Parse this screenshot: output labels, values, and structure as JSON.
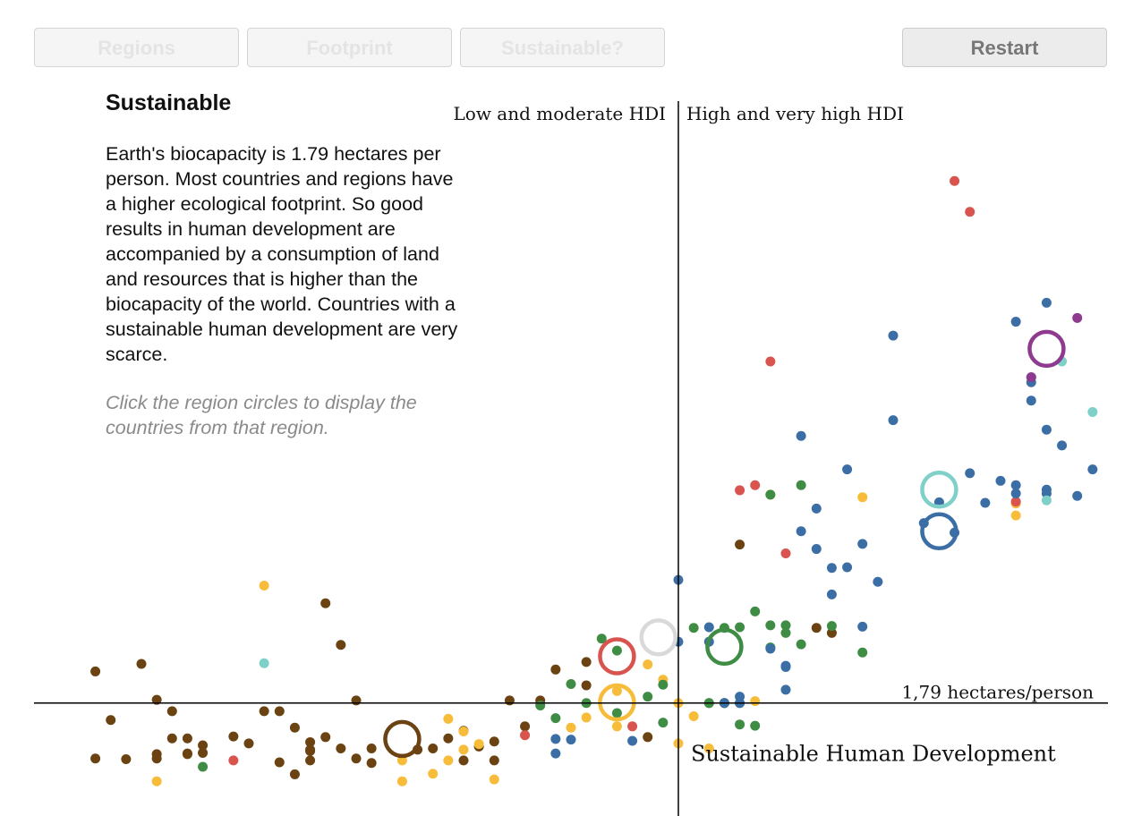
{
  "buttons": {
    "regions": "Regions",
    "footprint": "Footprint",
    "sustainable": "Sustainable?",
    "restart": "Restart"
  },
  "panel": {
    "title": "Sustainable",
    "body": "Earth's biocapacity is 1.79 hectares per person. Most countries and regions have a higher ecological footprint. So good results in human development are accompanied by a consumption of land and resources that is higher than the biocapacity of the world. Countries with a sustainable human development are very scarce.",
    "hint": "Click the region circles to display the countries from that region."
  },
  "colors": {
    "africa": "#6b4212",
    "asia_pacific": "#f7bc3a",
    "arab_states": "#d9534f",
    "latin_america": "#3f8c45",
    "europe_central_asia": "#3c6ea6",
    "oecd": "#7fd0c8",
    "middle_east_top": "#8e3a8e",
    "world": "#d9d9d9"
  },
  "chart_data": {
    "type": "scatter",
    "title": "",
    "xlabel": "",
    "ylabel": "",
    "xlim": [
      0.28,
      0.98
    ],
    "ylim": [
      0,
      10.8
    ],
    "hdi_divider": 0.7,
    "biocapacity_line": 1.79,
    "annotations": {
      "left_region": "Low and moderate HDI",
      "right_region": "High and very high HDI",
      "biocapacity_label": "1,79 hectares/person",
      "quadrant_label": "Sustainable Human Development"
    },
    "region_circles": [
      {
        "color": "africa",
        "x": 0.52,
        "y": 1.22
      },
      {
        "color": "arab_states",
        "x": 0.66,
        "y": 2.53
      },
      {
        "color": "asia_pacific",
        "x": 0.66,
        "y": 1.8
      },
      {
        "color": "world",
        "x": 0.687,
        "y": 2.83
      },
      {
        "color": "latin_america",
        "x": 0.73,
        "y": 2.68
      },
      {
        "color": "europe_central_asia",
        "x": 0.87,
        "y": 4.51
      },
      {
        "color": "oecd",
        "x": 0.87,
        "y": 5.17
      },
      {
        "color": "middle_east_top",
        "x": 0.94,
        "y": 7.4
      }
    ],
    "series": [
      {
        "name": "africa",
        "points": [
          [
            0.32,
            2.29
          ],
          [
            0.35,
            2.41
          ],
          [
            0.33,
            1.52
          ],
          [
            0.36,
            0.98
          ],
          [
            0.36,
            1.84
          ],
          [
            0.37,
            1.23
          ],
          [
            0.37,
            1.66
          ],
          [
            0.38,
            1.23
          ],
          [
            0.39,
            1.0
          ],
          [
            0.38,
            0.99
          ],
          [
            0.39,
            1.12
          ],
          [
            0.41,
            1.26
          ],
          [
            0.42,
            1.15
          ],
          [
            0.43,
            1.66
          ],
          [
            0.44,
            1.66
          ],
          [
            0.45,
            1.4
          ],
          [
            0.46,
            1.03
          ],
          [
            0.46,
            1.17
          ],
          [
            0.45,
            0.66
          ],
          [
            0.36,
            0.91
          ],
          [
            0.38,
            0.98
          ],
          [
            0.32,
            0.91
          ],
          [
            0.34,
            0.9
          ],
          [
            0.47,
            3.37
          ],
          [
            0.48,
            2.71
          ],
          [
            0.49,
            1.83
          ],
          [
            0.48,
            1.07
          ],
          [
            0.49,
            0.91
          ],
          [
            0.5,
            1.07
          ],
          [
            0.5,
            0.84
          ],
          [
            0.53,
            1.05
          ],
          [
            0.54,
            1.07
          ],
          [
            0.55,
            1.23
          ],
          [
            0.56,
            1.35
          ],
          [
            0.57,
            1.1
          ],
          [
            0.58,
            1.18
          ],
          [
            0.59,
            1.83
          ],
          [
            0.6,
            1.42
          ],
          [
            0.61,
            1.83
          ],
          [
            0.62,
            2.32
          ],
          [
            0.64,
            2.44
          ],
          [
            0.64,
            2.07
          ],
          [
            0.68,
            1.25
          ],
          [
            0.58,
            0.88
          ],
          [
            0.44,
            0.85
          ],
          [
            0.46,
            1.05
          ],
          [
            0.56,
            0.88
          ],
          [
            0.46,
            0.88
          ],
          [
            0.74,
            4.3
          ],
          [
            0.79,
            2.98
          ],
          [
            0.8,
            2.9
          ],
          [
            0.47,
            1.25
          ]
        ]
      },
      {
        "name": "asia_pacific",
        "points": [
          [
            0.43,
            3.65
          ],
          [
            0.52,
            0.88
          ],
          [
            0.54,
            0.67
          ],
          [
            0.55,
            1.54
          ],
          [
            0.56,
            1.05
          ],
          [
            0.56,
            1.34
          ],
          [
            0.57,
            1.14
          ],
          [
            0.58,
            0.58
          ],
          [
            0.64,
            1.56
          ],
          [
            0.66,
            1.42
          ],
          [
            0.7,
            1.15
          ],
          [
            0.7,
            1.79
          ],
          [
            0.72,
            1.07
          ],
          [
            0.75,
            1.82
          ],
          [
            0.71,
            1.58
          ],
          [
            0.68,
            2.4
          ],
          [
            0.66,
            1.98
          ],
          [
            0.76,
            5.09
          ],
          [
            0.82,
            5.05
          ],
          [
            0.92,
            4.76
          ],
          [
            0.92,
            4.95
          ],
          [
            0.55,
            0.88
          ],
          [
            0.36,
            0.55
          ],
          [
            0.52,
            0.55
          ],
          [
            0.69,
            2.16
          ],
          [
            0.63,
            1.4
          ]
        ]
      },
      {
        "name": "arab_states",
        "points": [
          [
            0.88,
            10.06
          ],
          [
            0.89,
            9.57
          ],
          [
            0.77,
            4.16
          ],
          [
            0.75,
            5.24
          ],
          [
            0.74,
            5.16
          ],
          [
            0.76,
            7.2
          ],
          [
            0.92,
            4.98
          ],
          [
            0.67,
            1.42
          ],
          [
            0.6,
            1.28
          ],
          [
            0.41,
            0.88
          ]
        ]
      },
      {
        "name": "latin_america",
        "points": [
          [
            0.61,
            1.75
          ],
          [
            0.62,
            1.55
          ],
          [
            0.63,
            2.09
          ],
          [
            0.65,
            2.81
          ],
          [
            0.66,
            2.62
          ],
          [
            0.66,
            1.63
          ],
          [
            0.69,
            2.08
          ],
          [
            0.72,
            1.79
          ],
          [
            0.72,
            1.79
          ],
          [
            0.73,
            1.79
          ],
          [
            0.73,
            1.79
          ],
          [
            0.73,
            1.79
          ],
          [
            0.74,
            1.79
          ],
          [
            0.74,
            2.99
          ],
          [
            0.75,
            3.24
          ],
          [
            0.76,
            3.02
          ],
          [
            0.77,
            3.02
          ],
          [
            0.77,
            2.9
          ],
          [
            0.78,
            2.72
          ],
          [
            0.76,
            2.67
          ],
          [
            0.73,
            2.98
          ],
          [
            0.76,
            5.09
          ],
          [
            0.78,
            5.24
          ],
          [
            0.74,
            1.45
          ],
          [
            0.75,
            1.43
          ],
          [
            0.71,
            2.98
          ],
          [
            0.8,
            3.01
          ],
          [
            0.82,
            2.59
          ],
          [
            0.64,
            1.79
          ],
          [
            0.68,
            1.89
          ],
          [
            0.39,
            0.78
          ],
          [
            0.69,
            1.48
          ]
        ]
      },
      {
        "name": "europe_central_asia",
        "points": [
          [
            0.7,
            3.74
          ],
          [
            0.7,
            2.76
          ],
          [
            0.72,
            2.76
          ],
          [
            0.72,
            2.99
          ],
          [
            0.73,
            1.79
          ],
          [
            0.74,
            1.79
          ],
          [
            0.74,
            1.89
          ],
          [
            0.76,
            2.65
          ],
          [
            0.77,
            2.38
          ],
          [
            0.77,
            2.36
          ],
          [
            0.77,
            2.0
          ],
          [
            0.78,
            4.51
          ],
          [
            0.78,
            6.02
          ],
          [
            0.79,
            4.87
          ],
          [
            0.79,
            4.23
          ],
          [
            0.8,
            3.51
          ],
          [
            0.8,
            3.93
          ],
          [
            0.81,
            5.49
          ],
          [
            0.81,
            3.94
          ],
          [
            0.82,
            4.31
          ],
          [
            0.82,
            3.0
          ],
          [
            0.83,
            3.71
          ],
          [
            0.84,
            6.27
          ],
          [
            0.86,
            4.64
          ],
          [
            0.87,
            4.97
          ],
          [
            0.88,
            4.49
          ],
          [
            0.89,
            5.43
          ],
          [
            0.9,
            4.96
          ],
          [
            0.91,
            5.31
          ],
          [
            0.92,
            5.11
          ],
          [
            0.92,
            5.24
          ],
          [
            0.93,
            6.95
          ],
          [
            0.93,
            6.87
          ],
          [
            0.93,
            6.58
          ],
          [
            0.94,
            6.12
          ],
          [
            0.94,
            5.11
          ],
          [
            0.94,
            5.17
          ],
          [
            0.97,
            5.49
          ],
          [
            0.95,
            5.87
          ],
          [
            0.96,
            5.07
          ],
          [
            0.84,
            7.61
          ],
          [
            0.92,
            7.83
          ],
          [
            0.94,
            8.13
          ],
          [
            0.67,
            1.19
          ],
          [
            0.62,
            0.99
          ],
          [
            0.62,
            1.22
          ],
          [
            0.63,
            1.21
          ]
        ]
      },
      {
        "name": "oecd",
        "points": [
          [
            0.43,
            2.42
          ],
          [
            0.94,
            5.0
          ],
          [
            0.97,
            6.4
          ],
          [
            0.95,
            7.2
          ]
        ]
      },
      {
        "name": "middle_east_top",
        "points": [
          [
            0.96,
            7.89
          ],
          [
            0.93,
            6.95
          ]
        ]
      }
    ]
  }
}
